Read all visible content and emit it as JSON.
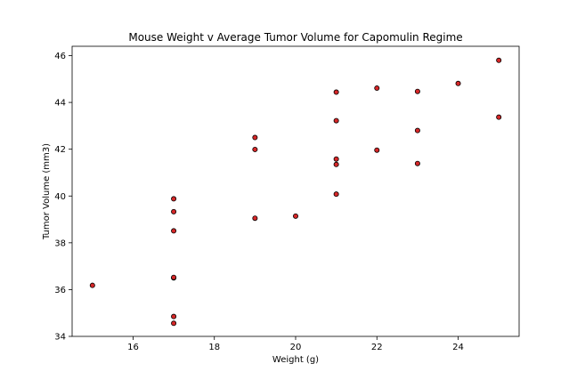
{
  "chart_data": {
    "type": "scatter",
    "title": "Mouse Weight v Average Tumor Volume for Capomulin Regime",
    "xlabel": "Weight (g)",
    "ylabel": "Tumor Volume (mm3)",
    "xlim": [
      14.5,
      25.5
    ],
    "ylim": [
      34.0,
      46.4
    ],
    "xticks": [
      16,
      18,
      20,
      22,
      24
    ],
    "yticks": [
      34,
      36,
      38,
      40,
      42,
      44,
      46
    ],
    "grid": false,
    "marker_color": "#d62728",
    "marker_edge_color": "#000000",
    "points": [
      {
        "x": 15,
        "y": 36.18
      },
      {
        "x": 17,
        "y": 34.56
      },
      {
        "x": 17,
        "y": 34.85
      },
      {
        "x": 17,
        "y": 36.5
      },
      {
        "x": 17,
        "y": 36.52
      },
      {
        "x": 17,
        "y": 38.51
      },
      {
        "x": 17,
        "y": 39.33
      },
      {
        "x": 17,
        "y": 39.88
      },
      {
        "x": 19,
        "y": 39.05
      },
      {
        "x": 19,
        "y": 41.99
      },
      {
        "x": 19,
        "y": 42.5
      },
      {
        "x": 20,
        "y": 39.14
      },
      {
        "x": 21,
        "y": 40.08
      },
      {
        "x": 21,
        "y": 41.35
      },
      {
        "x": 21,
        "y": 41.58
      },
      {
        "x": 21,
        "y": 43.22
      },
      {
        "x": 21,
        "y": 44.44
      },
      {
        "x": 22,
        "y": 41.96
      },
      {
        "x": 22,
        "y": 44.61
      },
      {
        "x": 23,
        "y": 41.39
      },
      {
        "x": 23,
        "y": 42.8
      },
      {
        "x": 23,
        "y": 44.47
      },
      {
        "x": 24,
        "y": 44.81
      },
      {
        "x": 25,
        "y": 43.37
      },
      {
        "x": 25,
        "y": 45.8
      }
    ]
  }
}
